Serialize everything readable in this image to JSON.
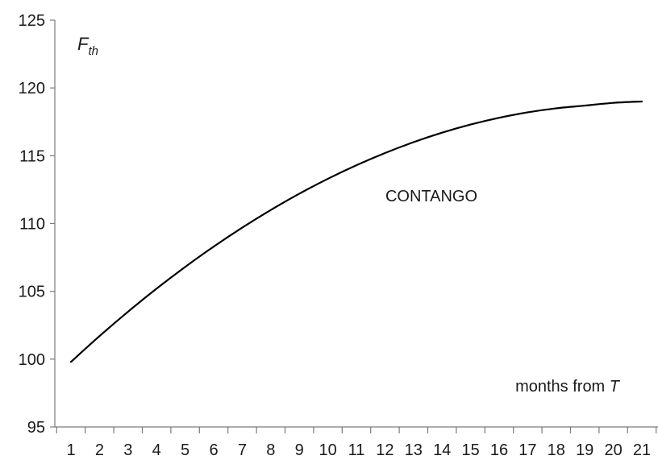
{
  "chart_data": {
    "type": "line",
    "title": "",
    "ylabel": {
      "main": "F",
      "sub": "th"
    },
    "xlabel": {
      "prefix": "months from ",
      "var": "T"
    },
    "annotation": "CONTANGO",
    "x": [
      1,
      2,
      3,
      4,
      5,
      6,
      7,
      8,
      9,
      10,
      11,
      12,
      13,
      14,
      15,
      16,
      17,
      18,
      19,
      20,
      21
    ],
    "series": [
      {
        "values": [
          99.8,
          101.7,
          103.5,
          105.2,
          106.8,
          108.3,
          109.7,
          111.0,
          112.2,
          113.3,
          114.3,
          115.2,
          116.0,
          116.7,
          117.3,
          117.8,
          118.2,
          118.5,
          118.7,
          118.9,
          119.0
        ]
      }
    ],
    "yticks": [
      95,
      100,
      105,
      110,
      115,
      120,
      125
    ],
    "ylim": [
      95,
      125
    ],
    "xticks": [
      1,
      2,
      3,
      4,
      5,
      6,
      7,
      8,
      9,
      10,
      11,
      12,
      13,
      14,
      15,
      16,
      17,
      18,
      19,
      20,
      21
    ],
    "grid": false,
    "legend": "none",
    "colors": {
      "line": "#000000",
      "axis": "#7a7a7a",
      "text": "#1a1a1a"
    }
  }
}
